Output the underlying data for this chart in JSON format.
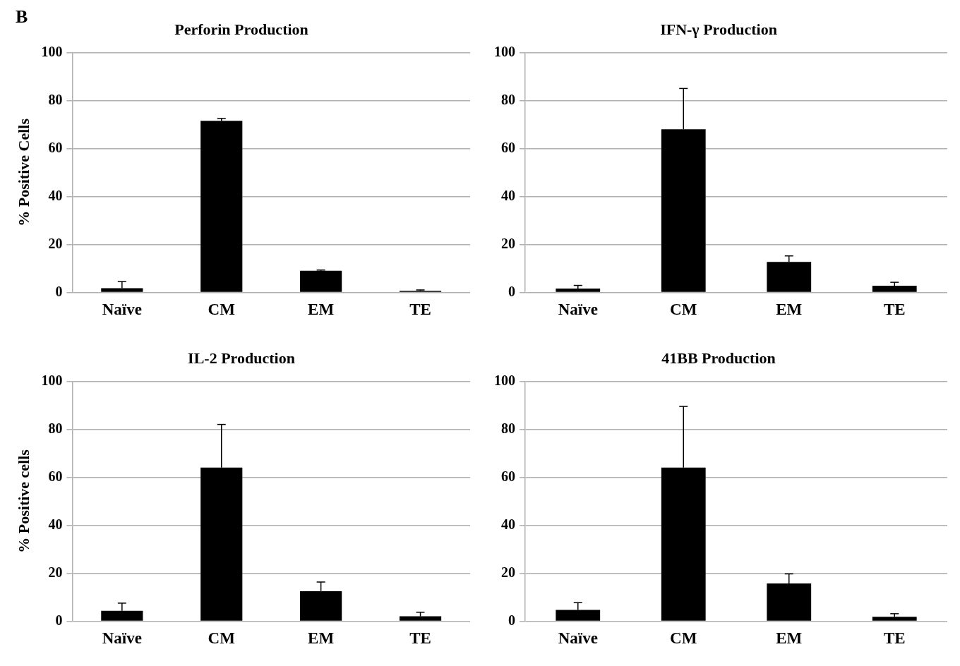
{
  "chart_data": [
    {
      "type": "bar",
      "title": "Perforin Production",
      "ylabel": "% Positive Cells",
      "annotations": [
        "B"
      ],
      "categories": [
        "Naïve",
        "CM",
        "EM",
        "TE"
      ],
      "values": [
        1.7,
        71.5,
        9,
        0.6
      ],
      "errors": [
        [
          1.7,
          4.5
        ],
        [
          71.5,
          72.5
        ],
        [
          9,
          9.3
        ],
        [
          0.6,
          1
        ]
      ],
      "color": "#000000",
      "ylim": [
        0,
        100
      ],
      "yticks": [
        0,
        20,
        40,
        60,
        80,
        100
      ],
      "grid": "y"
    },
    {
      "type": "bar",
      "title": "IFN-γ Production",
      "categories": [
        "Naïve",
        "CM",
        "EM",
        "TE"
      ],
      "values": [
        1.6,
        68,
        12.7,
        2.8
      ],
      "errors": [
        [
          1.6,
          2.9
        ],
        [
          68,
          85
        ],
        [
          12.7,
          15.2
        ],
        [
          2.8,
          4.2
        ]
      ],
      "color": "#000000",
      "ylim": [
        0,
        100
      ],
      "yticks": [
        0,
        20,
        40,
        60,
        80,
        100
      ],
      "grid": "y"
    },
    {
      "type": "bar",
      "title": "IL-2 Production",
      "ylabel": "% Positive cells",
      "categories": [
        "Naïve",
        "CM",
        "EM",
        "TE"
      ],
      "values": [
        4.3,
        64,
        12.5,
        2
      ],
      "errors": [
        [
          4.3,
          7.5
        ],
        [
          64,
          82
        ],
        [
          12.5,
          16.3
        ],
        [
          2,
          3.7
        ]
      ],
      "color": "#000000",
      "ylim": [
        0,
        100
      ],
      "yticks": [
        0,
        20,
        40,
        60,
        80,
        100
      ],
      "grid": "y"
    },
    {
      "type": "bar",
      "title": "41BB Production",
      "categories": [
        "Naïve",
        "CM",
        "EM",
        "TE"
      ],
      "values": [
        4.7,
        64,
        15.7,
        1.8
      ],
      "errors": [
        [
          4.7,
          7.7
        ],
        [
          64,
          89.5
        ],
        [
          15.7,
          19.7
        ],
        [
          1.8,
          3.1
        ]
      ],
      "color": "#000000",
      "ylim": [
        0,
        100
      ],
      "yticks": [
        0,
        20,
        40,
        60,
        80,
        100
      ],
      "grid": "y"
    }
  ]
}
